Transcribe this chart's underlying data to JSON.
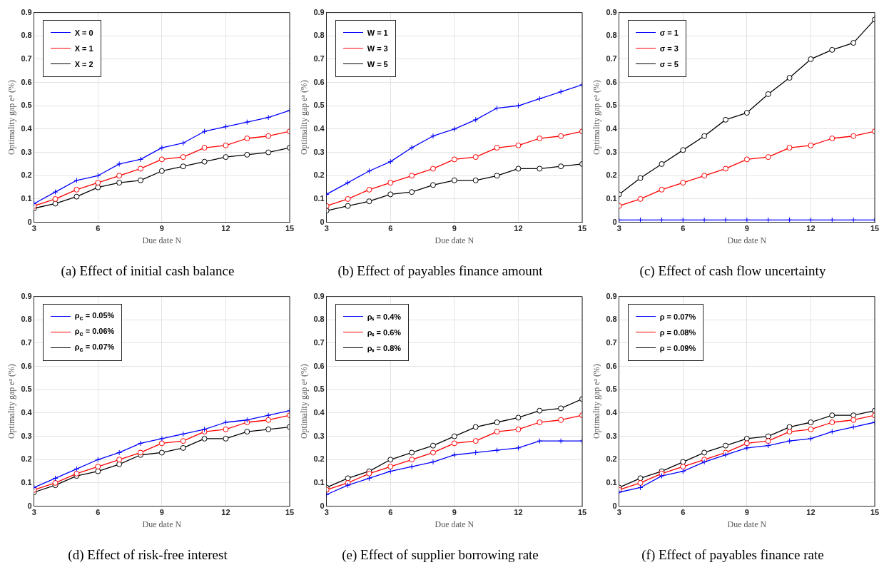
{
  "chart_data": [
    {
      "type": "line",
      "title": "(a) Effect of initial cash balance",
      "xlabel": "Due date N",
      "ylabel": "Optimality gap eᵃ (%)",
      "x": [
        3,
        4,
        5,
        6,
        7,
        8,
        9,
        10,
        11,
        12,
        13,
        14,
        15
      ],
      "xlim": [
        3,
        15
      ],
      "xticks": [
        3,
        6,
        9,
        12,
        15
      ],
      "ylim": [
        0,
        0.9
      ],
      "yticks": [
        0,
        0.1,
        0.2,
        0.3,
        0.4,
        0.5,
        0.6,
        0.7,
        0.8,
        0.9
      ],
      "grid": true,
      "legend": "top left",
      "series": [
        {
          "name": "X = 0",
          "color": "#0000ff",
          "marker": "cross",
          "values": [
            0.08,
            0.13,
            0.18,
            0.2,
            0.25,
            0.27,
            0.32,
            0.34,
            0.39,
            0.41,
            0.43,
            0.45,
            0.48
          ]
        },
        {
          "name": "X = 1",
          "color": "#ff0000",
          "marker": "circle",
          "values": [
            0.07,
            0.1,
            0.14,
            0.17,
            0.2,
            0.23,
            0.27,
            0.28,
            0.32,
            0.33,
            0.36,
            0.37,
            0.39
          ]
        },
        {
          "name": "X = 2",
          "color": "#000000",
          "marker": "circle",
          "values": [
            0.06,
            0.08,
            0.11,
            0.15,
            0.17,
            0.18,
            0.22,
            0.24,
            0.26,
            0.28,
            0.29,
            0.3,
            0.32
          ]
        }
      ]
    },
    {
      "type": "line",
      "title": "(b) Effect of payables finance amount",
      "xlabel": "Due date N",
      "ylabel": "Optimality gap eᵃ (%)",
      "x": [
        3,
        4,
        5,
        6,
        7,
        8,
        9,
        10,
        11,
        12,
        13,
        14,
        15
      ],
      "xlim": [
        3,
        15
      ],
      "xticks": [
        3,
        6,
        9,
        12,
        15
      ],
      "ylim": [
        0,
        0.9
      ],
      "yticks": [
        0,
        0.1,
        0.2,
        0.3,
        0.4,
        0.5,
        0.6,
        0.7,
        0.8,
        0.9
      ],
      "grid": true,
      "legend": "top left",
      "series": [
        {
          "name": "W = 1",
          "color": "#0000ff",
          "marker": "cross",
          "values": [
            0.12,
            0.17,
            0.22,
            0.26,
            0.32,
            0.37,
            0.4,
            0.44,
            0.49,
            0.5,
            0.53,
            0.56,
            0.59
          ]
        },
        {
          "name": "W = 3",
          "color": "#ff0000",
          "marker": "circle",
          "values": [
            0.07,
            0.1,
            0.14,
            0.17,
            0.2,
            0.23,
            0.27,
            0.28,
            0.32,
            0.33,
            0.36,
            0.37,
            0.39
          ]
        },
        {
          "name": "W = 5",
          "color": "#000000",
          "marker": "circle",
          "values": [
            0.05,
            0.07,
            0.09,
            0.12,
            0.13,
            0.16,
            0.18,
            0.18,
            0.2,
            0.23,
            0.23,
            0.24,
            0.25
          ]
        }
      ]
    },
    {
      "type": "line",
      "title": "(c) Effect of cash flow uncertainty",
      "xlabel": "Due date N",
      "ylabel": "Optimality gap eᵃ (%)",
      "x": [
        3,
        4,
        5,
        6,
        7,
        8,
        9,
        10,
        11,
        12,
        13,
        14,
        15
      ],
      "xlim": [
        3,
        15
      ],
      "xticks": [
        3,
        6,
        9,
        12,
        15
      ],
      "ylim": [
        0,
        0.9
      ],
      "yticks": [
        0,
        0.1,
        0.2,
        0.3,
        0.4,
        0.5,
        0.6,
        0.7,
        0.8,
        0.9
      ],
      "grid": true,
      "legend": "top left",
      "series": [
        {
          "name": "σ = 1",
          "color": "#0000ff",
          "marker": "cross",
          "values": [
            0.01,
            0.01,
            0.01,
            0.01,
            0.01,
            0.01,
            0.01,
            0.01,
            0.01,
            0.01,
            0.01,
            0.01,
            0.01
          ]
        },
        {
          "name": "σ = 3",
          "color": "#ff0000",
          "marker": "circle",
          "values": [
            0.07,
            0.1,
            0.14,
            0.17,
            0.2,
            0.23,
            0.27,
            0.28,
            0.32,
            0.33,
            0.36,
            0.37,
            0.39
          ]
        },
        {
          "name": "σ = 5",
          "color": "#000000",
          "marker": "circle",
          "values": [
            0.12,
            0.19,
            0.25,
            0.31,
            0.37,
            0.44,
            0.47,
            0.55,
            0.62,
            0.7,
            0.74,
            0.77,
            0.87
          ]
        }
      ]
    },
    {
      "type": "line",
      "title": "(d) Effect of risk-free interest",
      "xlabel": "Due date N",
      "ylabel": "Optimality gap eᵃ (%)",
      "x": [
        3,
        4,
        5,
        6,
        7,
        8,
        9,
        10,
        11,
        12,
        13,
        14,
        15
      ],
      "xlim": [
        3,
        15
      ],
      "xticks": [
        3,
        6,
        9,
        12,
        15
      ],
      "ylim": [
        0,
        0.9
      ],
      "yticks": [
        0,
        0.1,
        0.2,
        0.3,
        0.4,
        0.5,
        0.6,
        0.7,
        0.8,
        0.9
      ],
      "grid": true,
      "legend": "top left",
      "series": [
        {
          "name": "ρ$_{c}$ = 0.05%",
          "color": "#0000ff",
          "marker": "cross",
          "values": [
            0.08,
            0.12,
            0.16,
            0.2,
            0.23,
            0.27,
            0.29,
            0.31,
            0.33,
            0.36,
            0.37,
            0.39,
            0.41
          ]
        },
        {
          "name": "ρ$_{c}$ = 0.06%",
          "color": "#ff0000",
          "marker": "circle",
          "values": [
            0.07,
            0.1,
            0.14,
            0.17,
            0.2,
            0.23,
            0.27,
            0.28,
            0.32,
            0.33,
            0.36,
            0.37,
            0.39
          ]
        },
        {
          "name": "ρ$_{c}$ = 0.07%",
          "color": "#000000",
          "marker": "circle",
          "values": [
            0.06,
            0.09,
            0.13,
            0.15,
            0.18,
            0.22,
            0.23,
            0.25,
            0.29,
            0.29,
            0.32,
            0.33,
            0.34
          ]
        }
      ]
    },
    {
      "type": "line",
      "title": "(e) Effect of supplier borrowing rate",
      "xlabel": "Due date N",
      "ylabel": "Optimality gap eᵃ (%)",
      "x": [
        3,
        4,
        5,
        6,
        7,
        8,
        9,
        10,
        11,
        12,
        13,
        14,
        15
      ],
      "xlim": [
        3,
        15
      ],
      "xticks": [
        3,
        6,
        9,
        12,
        15
      ],
      "ylim": [
        0,
        0.9
      ],
      "yticks": [
        0,
        0.1,
        0.2,
        0.3,
        0.4,
        0.5,
        0.6,
        0.7,
        0.8,
        0.9
      ],
      "grid": true,
      "legend": "top left",
      "series": [
        {
          "name": "ρₛ = 0.4%",
          "color": "#0000ff",
          "marker": "cross",
          "values": [
            0.05,
            0.09,
            0.12,
            0.15,
            0.17,
            0.19,
            0.22,
            0.23,
            0.24,
            0.25,
            0.28,
            0.28,
            0.28
          ]
        },
        {
          "name": "ρₛ = 0.6%",
          "color": "#ff0000",
          "marker": "circle",
          "values": [
            0.07,
            0.1,
            0.14,
            0.17,
            0.2,
            0.23,
            0.27,
            0.28,
            0.32,
            0.33,
            0.36,
            0.37,
            0.39
          ]
        },
        {
          "name": "ρₛ = 0.8%",
          "color": "#000000",
          "marker": "circle",
          "values": [
            0.08,
            0.12,
            0.15,
            0.2,
            0.23,
            0.26,
            0.3,
            0.34,
            0.36,
            0.38,
            0.41,
            0.42,
            0.46
          ]
        }
      ]
    },
    {
      "type": "line",
      "title": "(f) Effect of payables finance rate",
      "xlabel": "Due date N",
      "ylabel": "Optimality gap eᵃ (%)",
      "x": [
        3,
        4,
        5,
        6,
        7,
        8,
        9,
        10,
        11,
        12,
        13,
        14,
        15
      ],
      "xlim": [
        3,
        15
      ],
      "xticks": [
        3,
        6,
        9,
        12,
        15
      ],
      "ylim": [
        0,
        0.9
      ],
      "yticks": [
        0,
        0.1,
        0.2,
        0.3,
        0.4,
        0.5,
        0.6,
        0.7,
        0.8,
        0.9
      ],
      "grid": true,
      "legend": "top left",
      "series": [
        {
          "name": "ρ = 0.07%",
          "color": "#0000ff",
          "marker": "cross",
          "values": [
            0.06,
            0.08,
            0.13,
            0.15,
            0.19,
            0.22,
            0.25,
            0.26,
            0.28,
            0.29,
            0.32,
            0.34,
            0.36
          ]
        },
        {
          "name": "ρ = 0.08%",
          "color": "#ff0000",
          "marker": "circle",
          "values": [
            0.07,
            0.1,
            0.14,
            0.17,
            0.2,
            0.23,
            0.27,
            0.28,
            0.32,
            0.33,
            0.36,
            0.37,
            0.39
          ]
        },
        {
          "name": "ρ = 0.09%",
          "color": "#000000",
          "marker": "circle",
          "values": [
            0.08,
            0.12,
            0.15,
            0.19,
            0.23,
            0.26,
            0.29,
            0.3,
            0.34,
            0.36,
            0.39,
            0.39,
            0.41
          ]
        }
      ]
    }
  ]
}
